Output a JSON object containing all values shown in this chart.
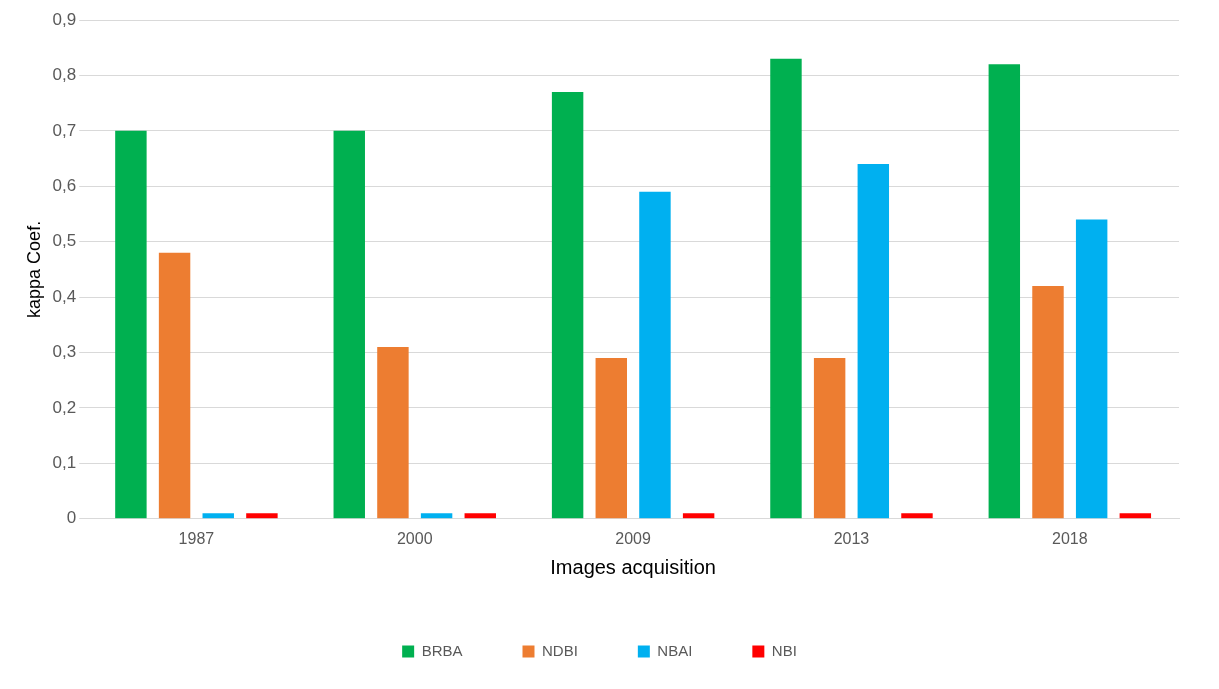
{
  "chart_data": {
    "type": "bar",
    "xlabel": "Images acquisition",
    "ylabel": "kappa Coef.",
    "categories": [
      "1987",
      "2000",
      "2009",
      "2013",
      "2018"
    ],
    "series": [
      {
        "name": "BRBA",
        "color": "#00b050",
        "values": [
          0.7,
          0.7,
          0.77,
          0.83,
          0.82
        ]
      },
      {
        "name": "NDBI",
        "color": "#ed7d31",
        "values": [
          0.48,
          0.31,
          0.29,
          0.29,
          0.42
        ]
      },
      {
        "name": "NBAI",
        "color": "#00b0f0",
        "values": [
          0.01,
          0.01,
          0.59,
          0.64,
          0.54
        ]
      },
      {
        "name": "NBI",
        "color": "#ff0000",
        "values": [
          0.01,
          0.01,
          0.01,
          0.01,
          0.01
        ]
      }
    ],
    "ylim": [
      0,
      0.9
    ],
    "yticks": [
      0,
      {
        "value": 0.1,
        "label": "0,1"
      },
      {
        "value": 0.2,
        "label": "0,2"
      },
      {
        "value": 0.3,
        "label": "0,3"
      },
      {
        "value": 0.4,
        "label": "0,4"
      },
      {
        "value": 0.5,
        "label": "0,5"
      },
      {
        "value": 0.6,
        "label": "0,6"
      },
      {
        "value": 0.7,
        "label": "0,7"
      },
      {
        "value": 0.8,
        "label": "0,8"
      },
      {
        "value": 0.9,
        "label": "0,9"
      }
    ],
    "grid": "y",
    "legend": "bottom"
  }
}
